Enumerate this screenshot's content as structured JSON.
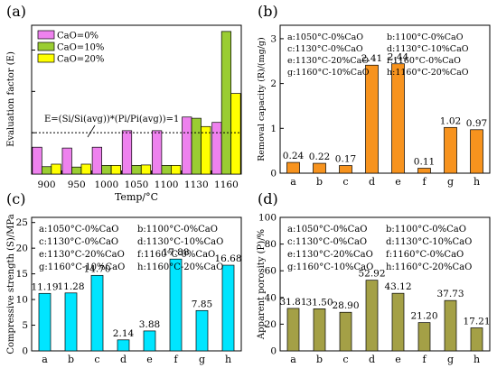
{
  "chart_data": [
    {
      "panel_label": "(a)",
      "type": "bar",
      "xlabel": "Temp/°C",
      "ylabel": "Evaluation factor (E)",
      "categories": [
        "900",
        "950",
        "1000",
        "1050",
        "1100",
        "1130",
        "1160"
      ],
      "series": [
        {
          "name": "CaO=0%",
          "color": "#ee82ee",
          "values": [
            0.65,
            0.63,
            0.65,
            1.05,
            1.05,
            1.38,
            1.25
          ]
        },
        {
          "name": "CaO=10%",
          "color": "#9acd32",
          "values": [
            0.18,
            0.17,
            0.21,
            0.21,
            0.21,
            1.35,
            3.45
          ]
        },
        {
          "name": "CaO=20%",
          "color": "#ffff00",
          "values": [
            0.24,
            0.24,
            0.21,
            0.22,
            0.21,
            1.15,
            1.95
          ]
        }
      ],
      "ylim": [
        0,
        3.6
      ],
      "reference_line": {
        "value": 1,
        "label": "E=(Si/Si(avg))*(Pi/Pi(avg))=1"
      },
      "legend_position": "top-left"
    },
    {
      "panel_label": "(b)",
      "type": "bar",
      "xlabel": "",
      "ylabel": "Removal capacity (R)/(mg/g)",
      "categories": [
        "a",
        "b",
        "c",
        "d",
        "e",
        "f",
        "g",
        "h"
      ],
      "values": [
        0.24,
        0.22,
        0.17,
        2.41,
        2.44,
        0.11,
        1.02,
        0.97
      ],
      "data_labels": [
        "0.24",
        "0.22",
        "0.17",
        "2.41",
        "2.44",
        "0.11",
        "1.02",
        "0.97"
      ],
      "color": "#f7931e",
      "ylim": [
        0,
        3.3
      ],
      "yticks": [
        0,
        1,
        2,
        3
      ],
      "legend_position": "top",
      "legend_lines": [
        [
          "a:1050°C-0%CaO",
          "b:1100°C-0%CaO"
        ],
        [
          "c:1130°C-0%CaO",
          "d:1130°C-10%CaO"
        ],
        [
          "e:1130°C-20%CaO",
          "f:1160°C-0%CaO"
        ],
        [
          "g:1160°C-10%CaO",
          "h:1160°C-20%CaO"
        ]
      ]
    },
    {
      "panel_label": "(c)",
      "type": "bar",
      "xlabel": "",
      "ylabel": "Compressive strength (S)/MPa",
      "categories": [
        "a",
        "b",
        "c",
        "d",
        "e",
        "f",
        "g",
        "h"
      ],
      "values": [
        11.19,
        11.28,
        14.7,
        2.14,
        3.88,
        17.88,
        7.85,
        16.68
      ],
      "data_labels": [
        "11.19",
        "11.28",
        "14.70",
        "2.14",
        "3.88",
        "17.88",
        "7.85",
        "16.68"
      ],
      "color": "#00e5ff",
      "ylim": [
        0,
        26
      ],
      "yticks": [
        0,
        5,
        10,
        15,
        20,
        25
      ],
      "legend_position": "top-left",
      "legend_lines": [
        [
          "a:1050°C-0%CaO",
          "b:1100°C-0%CaO"
        ],
        [
          "c:1130°C-0%CaO",
          "d:1130°C-10%CaO"
        ],
        [
          "e:1130°C-20%CaO",
          "f:1160°C-0%CaO"
        ],
        [
          "g:1160°C-10%CaO",
          "h:1160°C-20%CaO"
        ]
      ]
    },
    {
      "panel_label": "(d)",
      "type": "bar",
      "xlabel": "",
      "ylabel": "Apparent porosity (P)/%",
      "categories": [
        "a",
        "b",
        "c",
        "d",
        "e",
        "f",
        "g",
        "h"
      ],
      "values": [
        31.81,
        31.5,
        28.9,
        52.92,
        43.12,
        21.2,
        37.73,
        17.21
      ],
      "data_labels": [
        "31.81",
        "31.50",
        "28.90",
        "52.92",
        "43.12",
        "21.20",
        "37.73",
        "17.21"
      ],
      "color": "#a4a046",
      "ylim": [
        0,
        100
      ],
      "yticks": [
        0,
        20,
        40,
        60,
        80,
        100
      ],
      "legend_position": "top-left",
      "legend_lines": [
        [
          "a:1050°C-0%CaO",
          "b:1100°C-0%CaO"
        ],
        [
          "c:1130°C-0%CaO",
          "d:1130°C-10%CaO"
        ],
        [
          "e:1130°C-20%CaO",
          "f:1160°C-0%CaO"
        ],
        [
          "g:1160°C-10%CaO",
          "h:1160°C-20%CaO"
        ]
      ]
    }
  ]
}
